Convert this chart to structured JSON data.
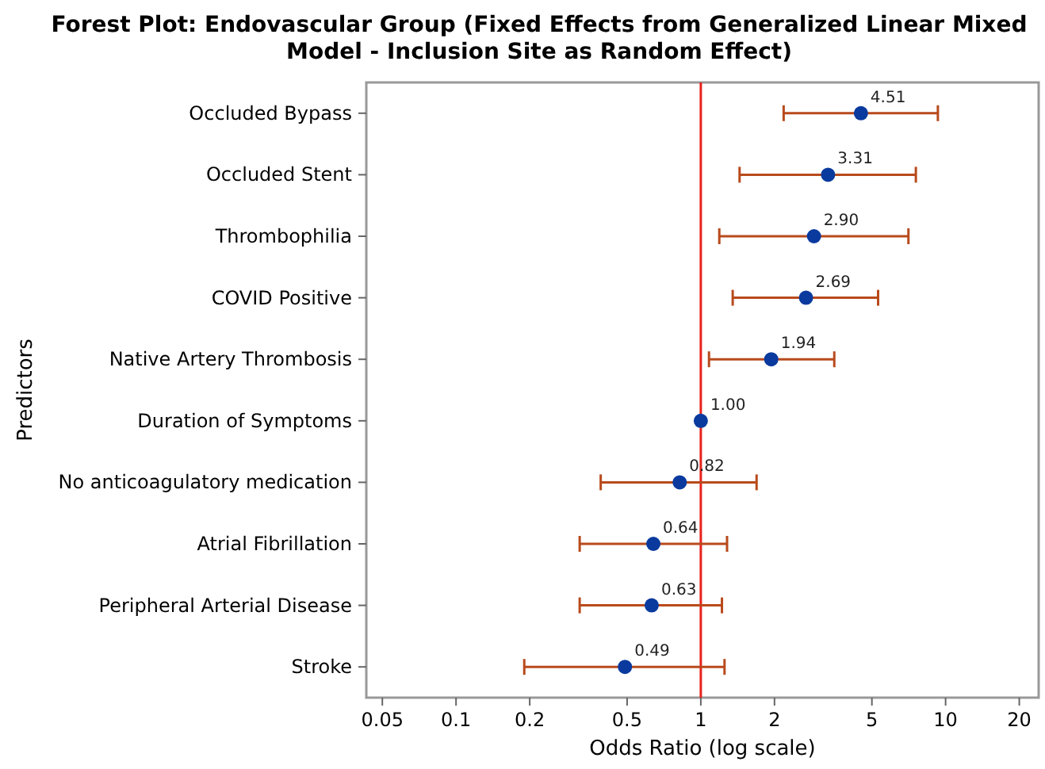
{
  "chart_data": {
    "type": "scatter",
    "orientation": "horizontal",
    "title": "Forest Plot: Endovascular Group (Fixed Effects from Generalized Linear Mixed Model - Inclusion Site as Random Effect)",
    "xlabel": "Odds Ratio (log scale)",
    "ylabel": "Predictors",
    "categories": [
      "Occluded Bypass",
      "Occluded Stent",
      "Thrombophilia",
      "COVID Positive",
      "Native Artery Thrombosis",
      "Duration of Symptoms",
      "No anticoagulatory medication",
      "Atrial Fibrillation",
      "Peripheral Arterial Disease",
      "Stroke"
    ],
    "color": "#0a3a9e",
    "values": [
      4.51,
      3.31,
      2.9,
      2.69,
      1.94,
      1.0,
      0.82,
      0.64,
      0.63,
      0.49
    ],
    "value_labels": [
      "4.51",
      "3.31",
      "2.90",
      "2.69",
      "1.94",
      "1.00",
      "0.82",
      "0.64",
      "0.63",
      "0.49"
    ],
    "errors": [
      [
        2.18,
        9.3
      ],
      [
        1.44,
        7.56
      ],
      [
        1.19,
        7.05
      ],
      [
        1.35,
        5.3
      ],
      [
        1.08,
        3.51
      ],
      null,
      [
        0.39,
        1.69
      ],
      [
        0.32,
        1.28
      ],
      [
        0.32,
        1.22
      ],
      [
        0.19,
        1.25
      ]
    ],
    "marker": "circle",
    "log": "x",
    "grid": false,
    "xlim": [
      0.043,
      24
    ],
    "xticks": [
      0.05,
      0.1,
      0.2,
      0.5,
      1,
      2,
      5,
      10,
      20
    ],
    "ref_lines": [
      {
        "axis": "x",
        "value": 1,
        "color": "#e8221b"
      }
    ]
  }
}
